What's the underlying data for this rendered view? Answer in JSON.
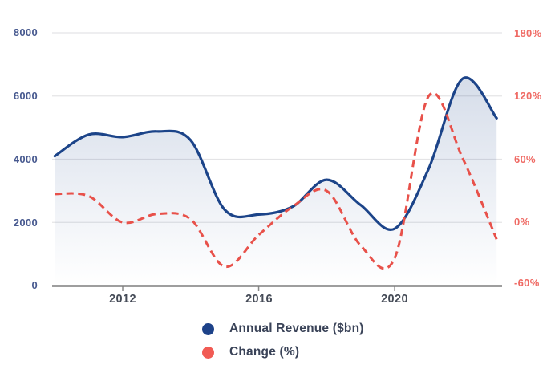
{
  "chart_data": {
    "type": "line",
    "title": "",
    "x": [
      2010,
      2011,
      2012,
      2013,
      2014,
      2015,
      2016,
      2017,
      2018,
      2019,
      2020,
      2021,
      2022,
      2023
    ],
    "series": [
      {
        "name": "Annual Revenue ($bn)",
        "axis": "left",
        "style": "solid",
        "color": "#1c4489",
        "fill": "gradient-below",
        "values": [
          4100,
          4780,
          4700,
          4880,
          4600,
          2400,
          2250,
          2500,
          3350,
          2550,
          1800,
          3700,
          6550,
          5300
        ]
      },
      {
        "name": "Change (%)",
        "axis": "right",
        "style": "dashed",
        "color": "#e8514a",
        "values": [
          27,
          25,
          0,
          8,
          3,
          -42,
          -12,
          15,
          30,
          -22,
          -34,
          120,
          61,
          -16
        ]
      }
    ],
    "axes": {
      "left": {
        "ticks": [
          0,
          2000,
          4000,
          6000,
          8000
        ],
        "range": [
          0,
          8000
        ]
      },
      "right": {
        "ticks": [
          -60,
          0,
          60,
          120,
          180
        ],
        "range": [
          -60,
          180
        ]
      },
      "x": {
        "ticks": [
          2012,
          2016,
          2020
        ],
        "range": [
          2010,
          2023.16
        ]
      }
    },
    "grid": true,
    "legend_position": "bottom"
  },
  "axis_labels": {
    "left": [
      "8000",
      "6000",
      "4000",
      "2000",
      "0"
    ],
    "right": [
      "180%",
      "120%",
      "60%",
      "0%",
      "-60%"
    ],
    "x": [
      "2012",
      "2016",
      "2020"
    ]
  },
  "legend": {
    "items": [
      {
        "label": "Annual Revenue ($bn)",
        "color": "#1d4289"
      },
      {
        "label": "Change (%)",
        "color": "#f15b54"
      }
    ]
  },
  "colors": {
    "grid_line": "#e4e4e6",
    "axis_line": "#7e7e7e",
    "tick_mark": "#8a8a8a",
    "left_axis_text": "#47598f",
    "right_axis_text": "#ef6a64",
    "x_axis_text": "#454b57",
    "legend_text": "#3a4358",
    "background": "#ffffff"
  }
}
